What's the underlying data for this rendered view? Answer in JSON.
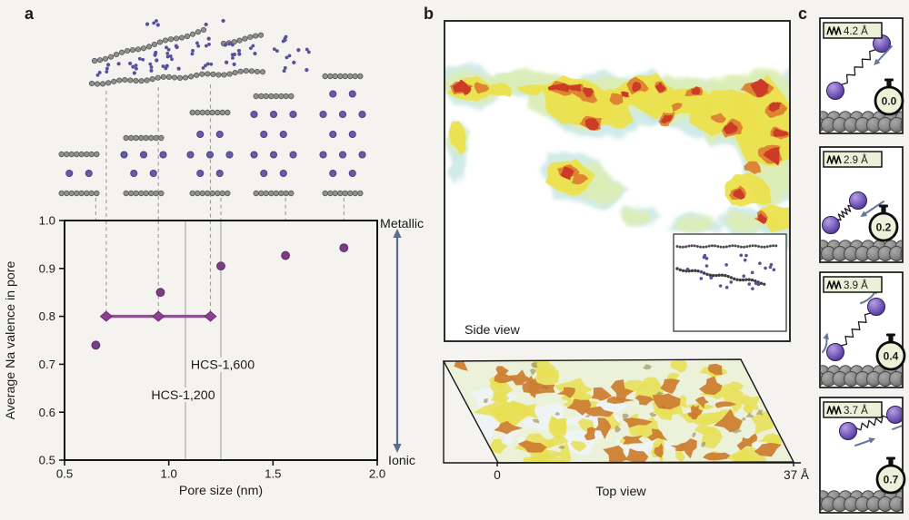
{
  "panels": {
    "a": {
      "letter": "a"
    },
    "b": {
      "letter": "b"
    },
    "c": {
      "letter": "c"
    }
  },
  "panel_a": {
    "chart_data": {
      "type": "scatter",
      "title": "",
      "xlabel": "Pore size (nm)",
      "ylabel": "Average Na valence in pore",
      "xlim": [
        0.5,
        2.0
      ],
      "ylim": [
        0.5,
        1.0
      ],
      "xticks": [
        "0.5",
        "1.0",
        "1.5",
        "2.0"
      ],
      "yticks": [
        "1.0",
        "0.9",
        "0.8",
        "0.7",
        "0.6",
        "0.5"
      ],
      "points": [
        [
          0.65,
          0.74
        ],
        [
          0.96,
          0.85
        ],
        [
          1.25,
          0.905
        ],
        [
          1.56,
          0.927
        ],
        [
          1.84,
          0.943
        ]
      ],
      "range_bar": {
        "y": 0.8,
        "x_points": [
          0.7,
          0.95,
          1.2
        ],
        "line_color": "#9c48a4",
        "diamond_color": "#8c3e95"
      },
      "vlines": [
        {
          "x": 1.08,
          "label": "HCS-1,200"
        },
        {
          "x": 1.25,
          "label": "HCS-1,600"
        }
      ],
      "dashed_guides_x": [
        0.7,
        0.95,
        1.2
      ],
      "column_guides_x": [
        0.65,
        1.25,
        1.56,
        1.84
      ],
      "right_axis": {
        "top_label": "Metallic",
        "bottom_label": "Ionic",
        "arrow_color": "#5d6c8e"
      },
      "point_color": "#7c3d86",
      "grid": false,
      "legend": null
    },
    "structures": {
      "columns_na_layers": [
        1,
        2,
        3,
        4,
        5
      ]
    }
  },
  "panel_b": {
    "side_view": {
      "label": "Side view"
    },
    "top_view": {
      "label": "Top view",
      "scale_min": "0",
      "scale_max": "37 Å"
    },
    "heat_palette": {
      "red": "#cb3a26",
      "orange": "#dd8030",
      "yellow": "#ece24e",
      "green": "#dcedb4",
      "cyan": "#c6e6e1"
    },
    "top_palette": {
      "base": "#ecf1d9",
      "pale": "#eef3f6",
      "yellow": "#e7df52",
      "orange": "#cc7e2f",
      "olive": "#8b7b45"
    }
  },
  "panel_c": {
    "frames": [
      {
        "distance": "4.2 Å",
        "time": "0.0"
      },
      {
        "distance": "2.9 Å",
        "time": "0.2"
      },
      {
        "distance": "3.9 Å",
        "time": "0.4"
      },
      {
        "distance": "3.7 Å",
        "time": "0.7"
      }
    ],
    "tag_bg": "#edf0d9",
    "watch_bg": "#edf1da",
    "atom_color": "#7a5fc0",
    "arrow_color": "#66779b"
  },
  "colors": {
    "background": "#f4f3ef",
    "na_purple": "#675aa6",
    "na_dot": "#5a4f9d",
    "carbon_gray": "#909090",
    "guide_gray": "#9b9b9b",
    "vline_gray": "#ababab",
    "frame_black": "#161616"
  }
}
